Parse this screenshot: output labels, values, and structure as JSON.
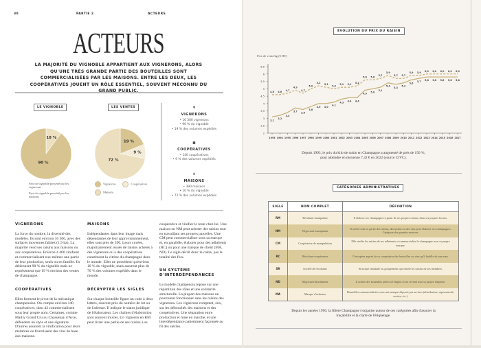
{
  "left": {
    "page_number": "30",
    "part": "PARTIE 2",
    "section": "ACTEURS",
    "title": "ACTEURS",
    "intro": "LA MAJORITÉ DU VIGNOBLE APPARTIENT AUX VIGNERONS, ALORS QU'UNE TRÈS GRANDE PARTIE DES BOUTEILLES SONT COMMERCIALISÉES PAR LES MAISONS. ENTRE LES DEUX, LES COOPÉRATIVES JOUENT UN RÔLE ESSENTIEL, SOUVENT MÉCONNU DU GRAND PUBLIC.",
    "pie_vignoble": {
      "title": "LE VIGNOBLE",
      "slices": [
        {
          "label": "10 %",
          "value": 10,
          "color": "#ece0c0"
        },
        {
          "label": "90 %",
          "value": 90,
          "color": "#d8c490"
        }
      ],
      "legend": [
        "Part du vignoble possédé par les vignerons",
        "Part du vignoble possédé par les maisons"
      ]
    },
    "pie_ventes": {
      "title": "LES VENTES",
      "slices": [
        {
          "label": "19 %",
          "value": 19,
          "color": "#d8c490"
        },
        {
          "label": "9 %",
          "value": 9,
          "color": "#f4ecd8"
        },
        {
          "label": "72 %",
          "value": 72,
          "color": "#ebdfbf"
        }
      ],
      "legend": [
        "Vignerons",
        "Coopératives",
        "Maisons"
      ]
    },
    "actors": [
      {
        "name": "VIGNERONS",
        "lines": [
          "• 16 300 vignerons",
          "• 90 % du vignoble",
          "• 19 % des volumes expédiés"
        ]
      },
      {
        "name": "COOPÉRATIVES",
        "lines": [
          "• 140 coopératives",
          "• 9 % des volumes expédiés"
        ]
      },
      {
        "name": "MAISONS",
        "lines": [
          "• 390 maisons",
          "• 10 % du vignoble",
          "• 72 % des volumes expédiés"
        ]
      }
    ],
    "sections": [
      {
        "title": "VIGNERONS",
        "text": "La force du nombre, la diversité des modèles. Ils sont environ 16 300, avec des surfaces moyennes faibles (1,9 ha). La majorité vend ses raisins aux maisons ou aux coopératives. Environ 4 400 vinifient et commercialisent eux-mêmes une partie de leur production, seuls ou en famille. Ils détiennent 90 % du vignoble mais ne représentent que 19 % environ des ventes de champagne."
      },
      {
        "title": "COOPÉRATIVES",
        "text": "Elles forment le pivot de la mécanique champenoise. On compte environ 140 coopératives, dont 42 commercialisent sous leur propre nom. Certaines, comme Mailly Grand Cru ou Chassenay d'Arce, défendent un style et une signature. D'autres assurent la vinification pour leurs membres ou fournissent des vins de base aux maisons."
      },
      {
        "title": "MAISONS",
        "text": "Indépendantes dans leur image mais dépendantes de leur approvisionnement, elles sont près de 390. Leurs cuvées, majoritairement issues de raisins achetés à des vignerons ou à des coopératives constituent la vitrine du champagne dans le monde. Elles ne possèdent qu'environ 10 % du vignoble, mais assurent plus de 70 % des volumes expédiés dans le monde."
      },
      {
        "title": "DÉCRYPTER LES SIGLES",
        "text": "Sur chaque bouteille figure un code à deux lettres, souvent près du numéro de lot ou de l'adresse. Il indique le statut juridique de l'élaborateur. Les chaînes d'élaboration sont souvent mixtes. Un vigneron en RM peut livrer une partie de ses raisins à sa"
      },
      {
        "title": "",
        "text": "coopérative et vinifier le reste chez lui. Une maison en NM peut acheter des raisins tout en travaillant ses propres parcelles. Une CM peut commercialiser sous sa marque et, en parallèle, élaborer pour des adhérents (RC) ou pour une marque de client (MA, ND). Le sigle décrit donc le cadre, pas la totalité des flux."
      },
      {
        "title": "UN SYSTÈME D'INTERDÉPENDANCES",
        "text": "Le modèle champenois repose sur une répartition des rôles et une solidarité structurelle. La plupart des maisons ne pourraient fonctionner sans les raisins des vignerons. Les vignerons comptent, eux, sur les débouchés des maisons et des coopératives. Une séparation entre production et mise en marché, et une interdépendance patiemment façonnée au fil des siècles."
      }
    ]
  },
  "right": {
    "chart_caption": "Depuis 1993, le prix du kilo de raisin en Champagne a augmenté de près de 150 %, pour atteindre en moyenne 7,32 € en 2022 (source CIVC).",
    "table_title": "CATÉGORIES ADMINISTRATIVES",
    "table_headers": [
      "SIGLE",
      "NOM COMPLET",
      "DÉFINITION"
    ],
    "table_rows": [
      [
        "RM",
        "Récoltant-manipulant",
        "Il élabore ses champagnes à partir de ses propres raisins, dans ses propres locaux."
      ],
      [
        "NM",
        "Négociant-manipulant",
        "Il achète tout ou partie des raisins, des moûts ou des vins pour élaborer ses champagnes. Catégorie des grandes maisons."
      ],
      [
        "CM",
        "Coopérative de manipulation",
        "Elle vinifie les raisins de ses adhérents et commercialise le champagne sous sa propre marque."
      ],
      [
        "RC",
        "Récoltant-coopérateur",
        "Il récupère auprès de sa coopérative des bouteilles ou vins qu'il habille de son nom."
      ],
      [
        "SR",
        "Société de récoltants",
        "Structure familiale ou groupement qui vinifie les raisins de ses membres."
      ],
      [
        "ND",
        "Négociant-distributeur",
        "Il achète des bouteilles prêtes à l'emploi et les revend sous sa propre étiquette."
      ],
      [
        "MA",
        "Marque d'acheteur",
        "Bouteilles commercialisées sous une marque déposée par un tiers (distributeur, supermarché, caviste, etc.)."
      ]
    ],
    "table_caption": "Depuis les années 1990, la filière Champagne s'organise autour de ces catégories afin d'assurer la traçabilité et la clarté de l'étiquetage."
  },
  "chart_data": {
    "type": "line",
    "title": "ÉVOLUTION DU PRIX DU RAISIN",
    "ylabel": "Prix de vente/kg (€ HT)",
    "ylim": [
      2,
      6.5
    ],
    "yticks": [
      "2",
      "2,5",
      "3",
      "3,5",
      "4",
      "4,5",
      "5",
      "5,5",
      "6",
      "6,5"
    ],
    "x": [
      1993,
      1994,
      1995,
      1996,
      1997,
      1998,
      1999,
      2000,
      2001,
      2002,
      2003,
      2004,
      2005,
      2006,
      2007,
      2008,
      2009,
      2010,
      2011,
      2012,
      2013,
      2014,
      2015,
      2016,
      2017
    ],
    "series": [
      {
        "name": "high",
        "style": "dashed",
        "color": "#c9b07a",
        "values": [
          4.6,
          4.6,
          4.7,
          4.9,
          4.7,
          5.0,
          5.2,
          5.1,
          5.0,
          5.1,
          5.1,
          5.2,
          5.6,
          5.6,
          5.7,
          5.9,
          5.7,
          5.7,
          5.9,
          5.9,
          6.0,
          6.0,
          6.0,
          6.0,
          6.0
        ]
      },
      {
        "name": "low",
        "style": "solid",
        "color": "#c9b07a",
        "values": [
          3.1,
          3.2,
          3.4,
          3.7,
          3.6,
          3.8,
          4.0,
          4.0,
          4.1,
          4.3,
          4.4,
          4.4,
          4.9,
          5.0,
          5.1,
          5.4,
          5.3,
          5.4,
          5.6,
          5.7,
          5.8,
          5.8,
          5.8,
          5.8,
          5.8
        ]
      }
    ]
  }
}
